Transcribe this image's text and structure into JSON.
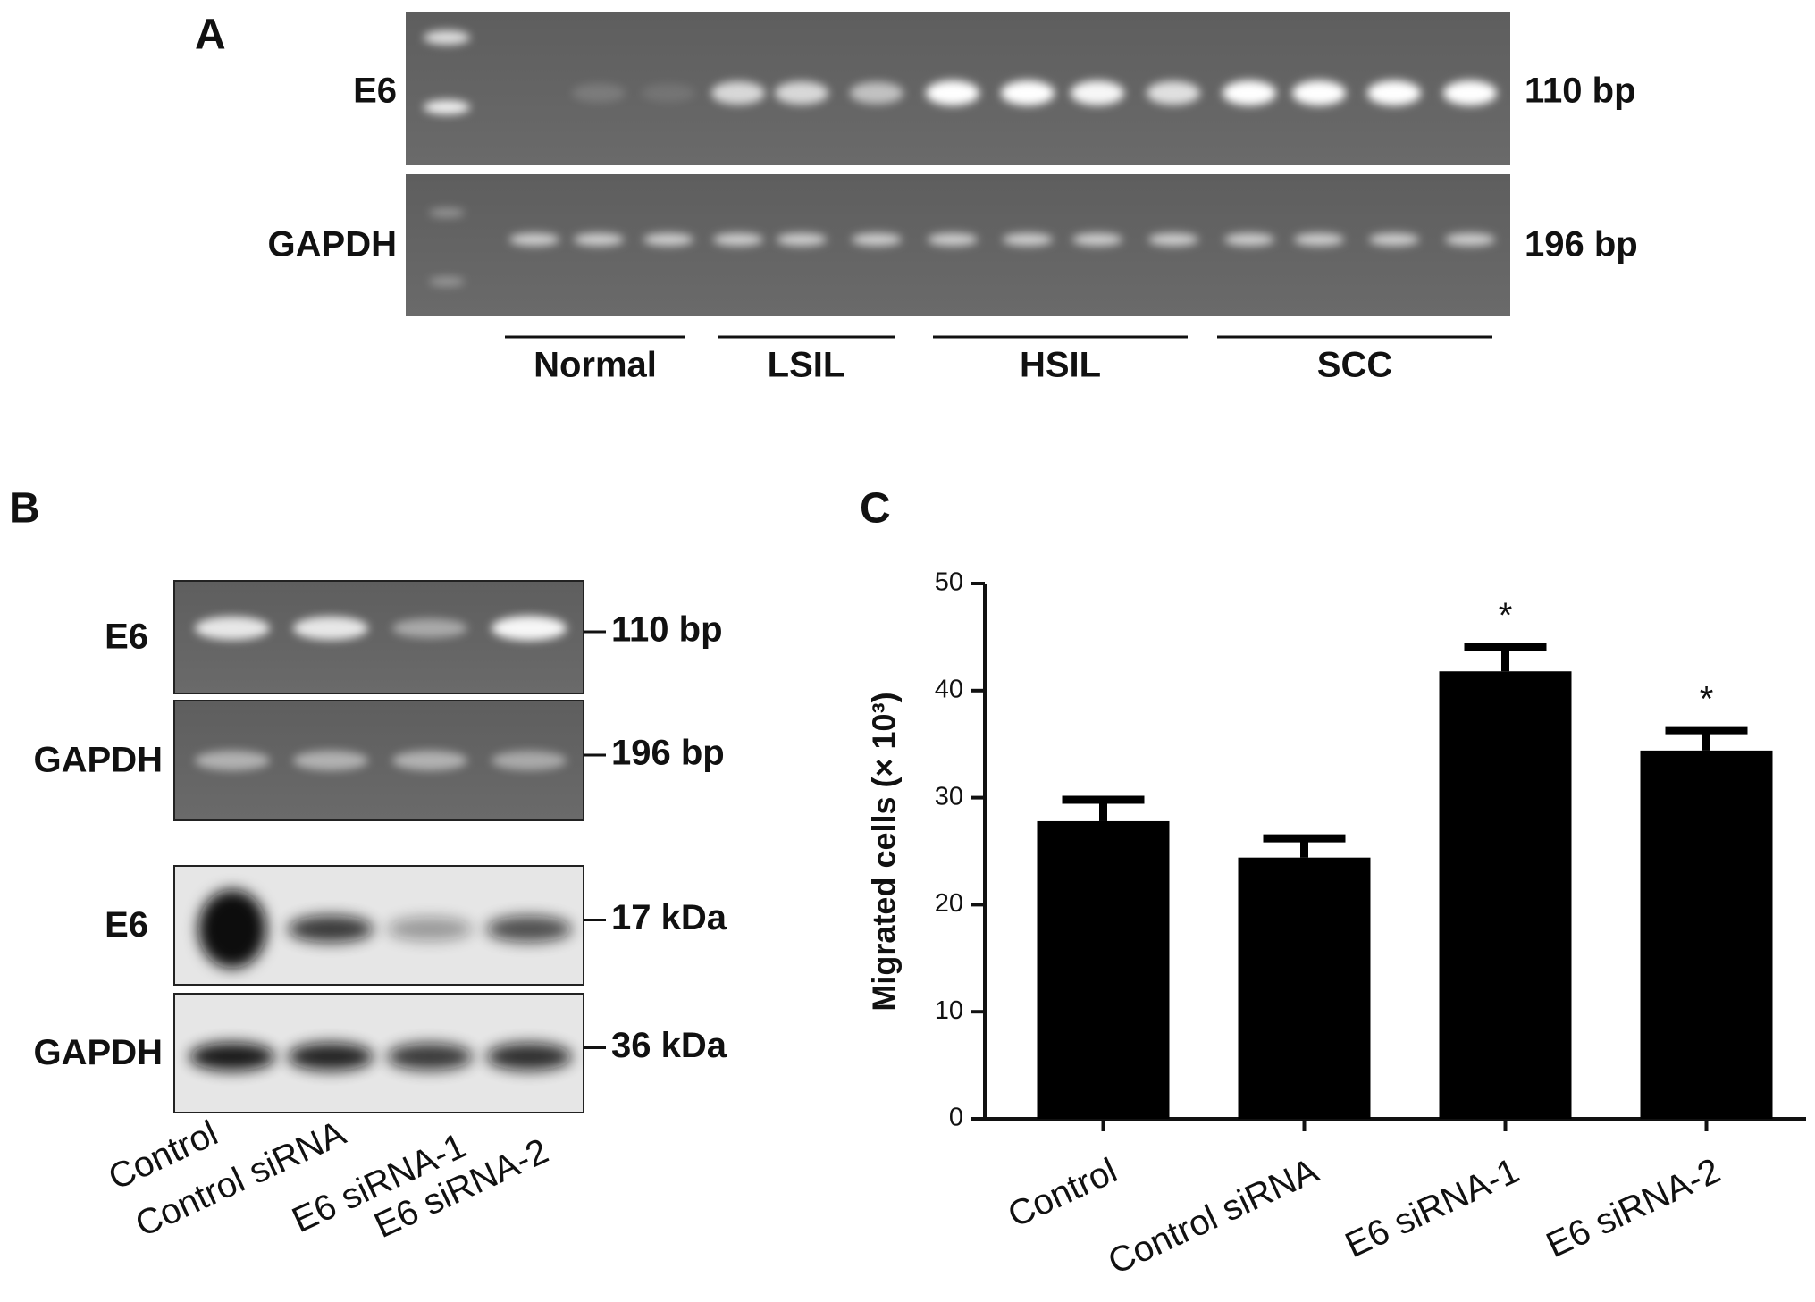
{
  "panel_a": {
    "label": "A",
    "rows": [
      {
        "label": "E6",
        "size": "110 bp"
      },
      {
        "label": "GAPDH",
        "size": "196 bp"
      }
    ],
    "groups": [
      "Normal",
      "LSIL",
      "HSIL",
      "SCC"
    ]
  },
  "panel_b": {
    "label": "B",
    "rows": [
      {
        "label": "E6",
        "size": "110 bp"
      },
      {
        "label": "GAPDH",
        "size": "196 bp"
      },
      {
        "label": "E6",
        "size": "17 kDa"
      },
      {
        "label": "GAPDH",
        "size": "36 kDa"
      }
    ],
    "lanes": [
      "Control",
      "Control siRNA",
      "E6 siRNA-1",
      "E6 siRNA-2"
    ]
  },
  "chart_data": {
    "type": "bar",
    "panel_label": "C",
    "y_label": "Migrated cells (× 10³)",
    "categories": [
      "Control",
      "Control siRNA",
      "E6 siRNA-1",
      "E6 siRNA-2"
    ],
    "values": [
      27.8,
      24.4,
      41.8,
      34.4
    ],
    "errors": [
      2.0,
      1.8,
      2.3,
      1.9
    ],
    "significance": [
      null,
      null,
      "*",
      "*"
    ],
    "color": "#000000",
    "ylim": [
      0,
      50
    ],
    "yticks": [
      0,
      10,
      20,
      30,
      40,
      50
    ]
  }
}
